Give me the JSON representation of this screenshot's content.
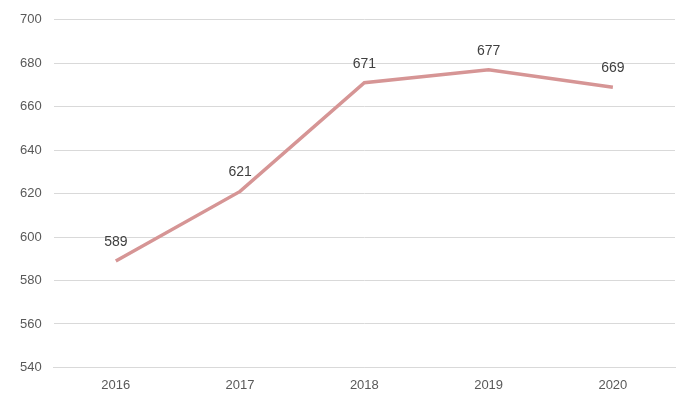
{
  "chart_data": {
    "type": "line",
    "categories": [
      "2016",
      "2017",
      "2018",
      "2019",
      "2020"
    ],
    "values": [
      589,
      621,
      671,
      677,
      669
    ],
    "color": "#d69595",
    "ylim": [
      540,
      700
    ],
    "yticks": [
      540,
      560,
      580,
      600,
      620,
      640,
      660,
      680,
      700
    ],
    "grid": true,
    "data_labels": true
  }
}
